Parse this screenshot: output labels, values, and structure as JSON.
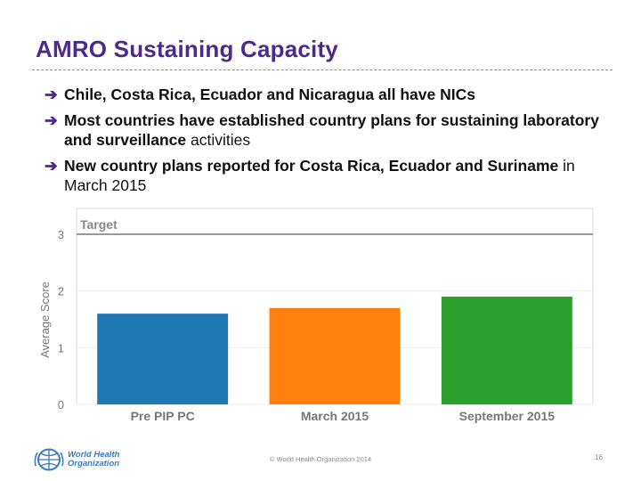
{
  "slide": {
    "title": "AMRO Sustaining Capacity",
    "bullets": [
      {
        "bold": "Chile, Costa Rica, Ecuador and Nicaragua all have NICs",
        "normal": ""
      },
      {
        "bold": "Most countries have established country plans for sustaining laboratory and surveillance",
        "normal": " activities"
      },
      {
        "bold": "New country plans reported for Costa Rica, Ecuador and Suriname",
        "normal": " in March 2015"
      }
    ],
    "bullet_icon": "right-arrow-icon",
    "accent_color": "#4b2a8c"
  },
  "chart_data": {
    "type": "bar",
    "categories": [
      "Pre PIP PC",
      "March 2015",
      "September 2015"
    ],
    "values": [
      1.6,
      1.7,
      1.9
    ],
    "colors": [
      "#1f77b4",
      "#ff7f0e",
      "#2ca02c"
    ],
    "ylabel": "Average Score",
    "ylim": [
      0,
      3
    ],
    "yticks": [
      "0",
      "1",
      "2",
      "3"
    ],
    "target": {
      "label": "Target",
      "value": 3
    },
    "grid": true
  },
  "footer": {
    "logo_line1": "World Health",
    "logo_line2": "Organization",
    "logo_icon": "who-emblem-icon",
    "copyright": "© World Health Organization 2014",
    "page_number": "16"
  }
}
